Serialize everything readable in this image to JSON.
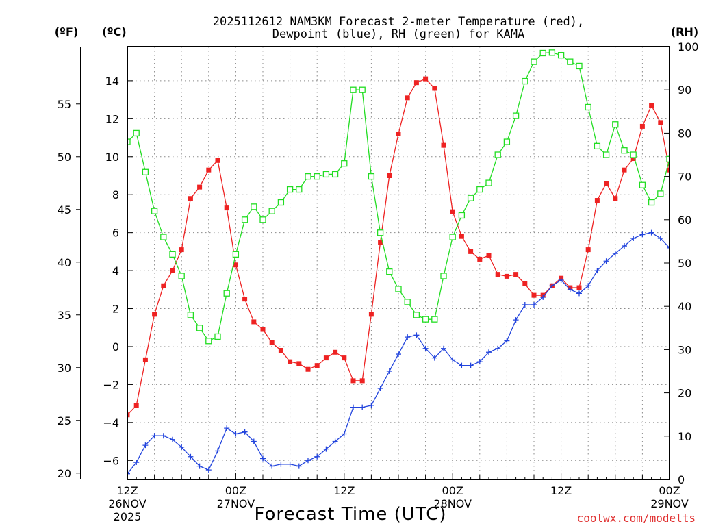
{
  "chart_data": {
    "type": "line",
    "title": {
      "line1": "2025112612 NAM3KM Forecast 2-meter Temperature (red),",
      "line2": "Dewpoint (blue), RH (green) for KAMA"
    },
    "unit_labels": {
      "fahrenheit": "(ºF)",
      "celsius": "(ºC)",
      "rh": "(RH)"
    },
    "xlabel": "Forecast Time (UTC)",
    "watermark": "coolwx.com/modelts",
    "x_ticks": [
      {
        "hour": 0,
        "line1": "12Z",
        "line2": "26NOV",
        "line3": "2025"
      },
      {
        "hour": 12,
        "line1": "00Z",
        "line2": "27NOV"
      },
      {
        "hour": 24,
        "line1": "12Z",
        "line2": ""
      },
      {
        "hour": 36,
        "line1": "00Z",
        "line2": "28NOV"
      },
      {
        "hour": 48,
        "line1": "12Z",
        "line2": ""
      },
      {
        "hour": 60,
        "line1": "00Z",
        "line2": "29NOV"
      }
    ],
    "x_range_hours": [
      0,
      60
    ],
    "celsius_range": [
      -7.0,
      15.8
    ],
    "celsius_ticks": [
      -6,
      -4,
      -2,
      0,
      2,
      4,
      6,
      8,
      10,
      12,
      14
    ],
    "celsius_tick_labels": [
      "−6",
      "−4",
      "−2",
      "0",
      "2",
      "4",
      "6",
      "8",
      "10",
      "12",
      "14"
    ],
    "fahrenheit_ticks": [
      20,
      25,
      30,
      35,
      40,
      45,
      50,
      55
    ],
    "rh_range": [
      0,
      100
    ],
    "rh_ticks": [
      0,
      10,
      20,
      30,
      40,
      50,
      60,
      70,
      80,
      90,
      100
    ],
    "hours": [
      0,
      1,
      2,
      3,
      4,
      5,
      6,
      7,
      8,
      9,
      10,
      11,
      12,
      13,
      14,
      15,
      16,
      17,
      18,
      19,
      20,
      21,
      22,
      23,
      24,
      25,
      26,
      27,
      28,
      29,
      30,
      31,
      32,
      33,
      34,
      35,
      36,
      37,
      38,
      39,
      40,
      41,
      42,
      43,
      44,
      45,
      46,
      47,
      48,
      49,
      50,
      51,
      52,
      53,
      54,
      55,
      56,
      57,
      58,
      59,
      60
    ],
    "series": [
      {
        "name": "Temperature",
        "units": "°C",
        "color": "#ee2222",
        "marker": "filled-square",
        "values": [
          -3.6,
          -3.1,
          -0.7,
          1.7,
          3.2,
          4.0,
          5.1,
          7.8,
          8.4,
          9.3,
          9.8,
          7.3,
          4.3,
          2.5,
          1.3,
          0.9,
          0.2,
          -0.2,
          -0.8,
          -0.9,
          -1.2,
          -1.0,
          -0.6,
          -0.3,
          -0.6,
          -1.8,
          -1.8,
          1.7,
          5.5,
          9.0,
          11.2,
          13.1,
          13.9,
          14.1,
          13.6,
          10.6,
          7.1,
          5.8,
          5.0,
          4.6,
          4.8,
          3.8,
          3.7,
          3.8,
          3.3,
          2.7,
          2.7,
          3.2,
          3.6,
          3.1,
          3.1,
          5.1,
          7.7,
          8.6,
          7.8,
          9.3,
          9.9,
          11.6,
          12.7,
          11.8,
          9.3
        ]
      },
      {
        "name": "Dewpoint",
        "units": "°C",
        "color": "#2244dd",
        "marker": "plus",
        "values": [
          -6.7,
          -6.1,
          -5.2,
          -4.7,
          -4.7,
          -4.9,
          -5.3,
          -5.8,
          -6.3,
          -6.5,
          -5.5,
          -4.3,
          -4.6,
          -4.5,
          -5.0,
          -5.9,
          -6.3,
          -6.2,
          -6.2,
          -6.3,
          -6.0,
          -5.8,
          -5.4,
          -5.0,
          -4.6,
          -3.2,
          -3.2,
          -3.1,
          -2.2,
          -1.3,
          -0.4,
          0.5,
          0.6,
          -0.1,
          -0.6,
          -0.1,
          -0.7,
          -1.0,
          -1.0,
          -0.8,
          -0.3,
          -0.1,
          0.3,
          1.4,
          2.2,
          2.2,
          2.6,
          3.2,
          3.5,
          3.0,
          2.8,
          3.2,
          4.0,
          4.5,
          4.9,
          5.3,
          5.7,
          5.9,
          6.0,
          5.7,
          5.2
        ]
      },
      {
        "name": "Relative Humidity",
        "units": "%",
        "color": "#22dd22",
        "marker": "open-square",
        "values": [
          78,
          80,
          71,
          62,
          56,
          52,
          47,
          38,
          35,
          32,
          33,
          43,
          52,
          60,
          63,
          60,
          62,
          64,
          67,
          67,
          70,
          70,
          70.5,
          70.5,
          73,
          90,
          90,
          70,
          57,
          48,
          44,
          41,
          38,
          37,
          37,
          47,
          56,
          61,
          65,
          67,
          68.5,
          75,
          78,
          84,
          92,
          96.5,
          98.5,
          98.6,
          98,
          96.5,
          95.5,
          86,
          77,
          75,
          82,
          76,
          75,
          68,
          64,
          66,
          74
        ]
      }
    ]
  }
}
